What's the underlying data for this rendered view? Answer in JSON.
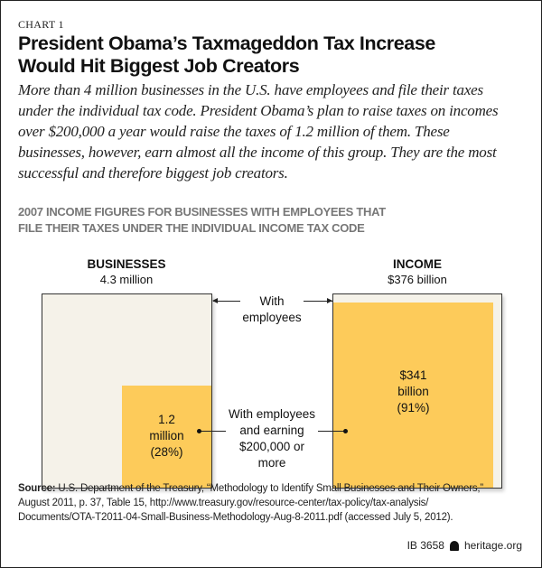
{
  "kicker": "CHART 1",
  "title_lines": [
    "President Obama’s Taxmageddon Tax Increase",
    "Would Hit Biggest Job Creators"
  ],
  "dek_lines": [
    "More than 4 million businesses in the U.S. have employees and file their taxes",
    "under the individual tax code. President Obama’s plan to raise taxes on incomes",
    "over $200,000 a year would raise the taxes of 1.2 million of them. These",
    "businesses, however, earn almost all the income of this group. They are the most",
    "successful and therefore biggest job creators."
  ],
  "chart_data": {
    "type": "area-proportion",
    "title_lines": [
      "2007 INCOME FIGURES FOR BUSINESSES WITH EMPLOYEES THAT",
      "FILE THEIR TAXES UNDER THE INDIVIDUAL INCOME TAX CODE"
    ],
    "panels": [
      {
        "name": "BUSINESSES",
        "total_label": "4.3 million",
        "total": 4.3,
        "subset": 1.2,
        "share": 0.28,
        "subset_label": [
          "1.2",
          "million",
          "(28%)"
        ]
      },
      {
        "name": "INCOME",
        "total_label": "$376 billion",
        "total": 376,
        "subset": 341,
        "share": 0.91,
        "subset_label": [
          "$341",
          "billion",
          "(91%)"
        ]
      }
    ],
    "legend": {
      "total": [
        "With",
        "employees"
      ],
      "subset": [
        "With employees",
        "and earning",
        "$200,000 or",
        "more"
      ]
    },
    "colors": {
      "total": "#f5f2e9",
      "subset": "#fdcb5a"
    }
  },
  "source": {
    "label": "Source:",
    "lines": [
      " U.S. Department of the Treasury, “Methodology to Identify Small Businesses and Their Owners,”",
      "August 2011, p. 37, Table 15, http://www.treasury.gov/resource-center/tax-policy/tax-analysis/",
      "Documents/OTA-T2011-04-Small-Business-Methodology-Aug-8-2011.pdf (accessed July 5, 2012)."
    ]
  },
  "footer": {
    "id": "IB 3658",
    "site": "heritage.org"
  }
}
